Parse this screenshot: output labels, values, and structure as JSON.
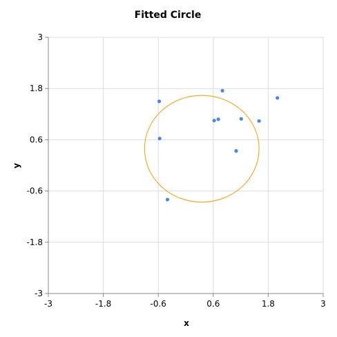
{
  "chart_data": {
    "type": "scatter",
    "title": "Fitted Circle",
    "xlabel": "x",
    "ylabel": "y",
    "xlim": [
      -3,
      3
    ],
    "ylim": [
      -3,
      3
    ],
    "xticks": [
      -3,
      -1.8,
      -0.6,
      0.6,
      1.8,
      3
    ],
    "yticks": [
      -3,
      -1.8,
      -0.6,
      0.6,
      1.8,
      3
    ],
    "xtick_labels": [
      "-3",
      "-1.8",
      "-0.6",
      "0.6",
      "1.8",
      "3"
    ],
    "ytick_labels": [
      "-3",
      "-1.8",
      "-0.6",
      "0.6",
      "1.8",
      "3"
    ],
    "grid": true,
    "series": [
      {
        "kind": "points",
        "color": "#4a86e8",
        "points": [
          [
            -0.58,
            1.5
          ],
          [
            -0.57,
            0.63
          ],
          [
            -0.4,
            -0.8
          ],
          [
            0.62,
            1.05
          ],
          [
            0.71,
            1.08
          ],
          [
            0.8,
            1.75
          ],
          [
            1.1,
            0.34
          ],
          [
            1.21,
            1.09
          ],
          [
            1.6,
            1.04
          ],
          [
            2.0,
            1.58
          ]
        ]
      },
      {
        "kind": "circle",
        "color": "#f0ad2c",
        "center": [
          0.35,
          0.39
        ],
        "radius": 1.25
      }
    ]
  }
}
